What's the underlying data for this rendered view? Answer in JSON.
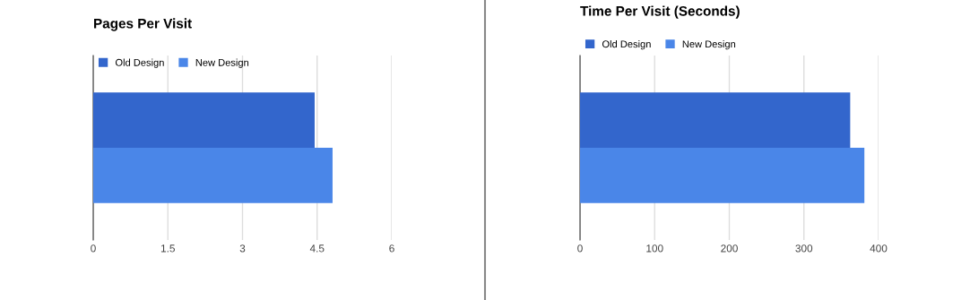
{
  "chart_data": [
    {
      "type": "bar",
      "orientation": "horizontal",
      "title": "Pages Per Visit",
      "categories": [
        null
      ],
      "series": [
        {
          "name": "Old Design",
          "color": "#3366cc",
          "values": [
            4.45
          ]
        },
        {
          "name": "New Design",
          "color": "#4a86e8",
          "values": [
            4.81
          ]
        }
      ],
      "xlim": [
        0,
        6
      ],
      "xticks": [
        0,
        1.5,
        3,
        4.5,
        6
      ],
      "grid": "x",
      "legend": "top left"
    },
    {
      "type": "bar",
      "orientation": "horizontal",
      "title": "Time Per Visit (Seconds)",
      "categories": [
        null
      ],
      "series": [
        {
          "name": "Old Design",
          "color": "#3366cc",
          "values": [
            362
          ]
        },
        {
          "name": "New Design",
          "color": "#4a86e8",
          "values": [
            381
          ]
        }
      ],
      "xlim": [
        0,
        400
      ],
      "xticks": [
        0,
        100,
        200,
        300,
        400
      ],
      "grid": "x",
      "legend": "top left"
    }
  ]
}
